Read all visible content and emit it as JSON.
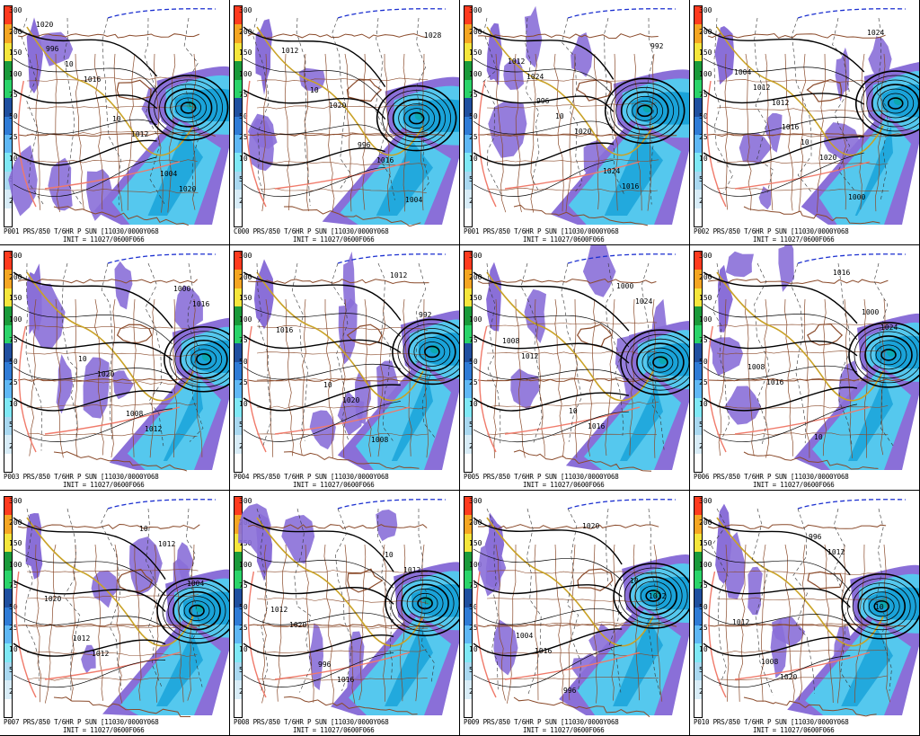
{
  "colors": {
    "precip_scale": [
      "#ff3b1f",
      "#f5a623",
      "#f5e63c",
      "#1a9a3a",
      "#2bd46a",
      "#1f4f9f",
      "#2f7bd6",
      "#5fb8f5",
      "#7fe8f5",
      "#a9d8f0",
      "#d8ecf7",
      "#ffffff"
    ],
    "purple": "#8a6fd8",
    "cyan_light": "#55c8ee",
    "cyan_mid": "#1aa3d9",
    "teal": "#0ba8b0",
    "isobar": "#000000",
    "thickness_gold": "#c9a227",
    "thickness_red": "#f07a6a",
    "thickness_blue": "#1b2fd0",
    "border_brown": "#8a4a2a"
  },
  "scale_ticks": [
    "300",
    "200",
    "150",
    "100",
    "75",
    "50",
    "25",
    "10",
    "5",
    "2"
  ],
  "panels": [
    {
      "caption1": "P001 PRS/850 T/6HR P SUN [11030/0000Y068",
      "caption2": "INIT = 11027/0600F066",
      "labels": [
        "1020",
        "1016",
        "1012",
        "1020",
        "10",
        "10",
        "1004",
        "996"
      ]
    },
    {
      "caption1": "C000 PRS/850 T/6HR P SUN [11030/0000Y068",
      "caption2": "INIT = 11027/0600F066",
      "labels": [
        "1012",
        "1020",
        "1016",
        "1028",
        "10",
        "996",
        "1004"
      ]
    },
    {
      "caption1": "P001 PRS/850 T/6HR P SUN [11030/0000Y068",
      "caption2": "INIT = 11027/0600F066",
      "labels": [
        "1024",
        "1020",
        "1016",
        "1012",
        "10",
        "1024",
        "992",
        "996"
      ]
    },
    {
      "caption1": "P002 PRS/850 T/6HR P SUN [11030/0000Y068",
      "caption2": "INIT = 11027/0600F066",
      "labels": [
        "1012",
        "1020",
        "1024",
        "1012",
        "10",
        "1000",
        "1004",
        "1016"
      ]
    },
    {
      "caption1": "P003 PRS/850 T/6HR P SUN [11030/0000Y068",
      "caption2": "INIT = 11027/0600F066",
      "labels": [
        "1020",
        "1012",
        "1016",
        "10",
        "1008",
        "1000"
      ]
    },
    {
      "caption1": "P004 PRS/850 T/6HR P SUN [11030/0000Y068",
      "caption2": "INIT = 11027/0600F066",
      "labels": [
        "1020",
        "1012",
        "1016",
        "10",
        "1008",
        "992"
      ]
    },
    {
      "caption1": "P005 PRS/850 T/6HR P SUN [11030/0000Y068",
      "caption2": "INIT = 11027/0600F066",
      "labels": [
        "1016",
        "1024",
        "1012",
        "10",
        "1000",
        "1008"
      ]
    },
    {
      "caption1": "P006 PRS/850 T/6HR P SUN [11030/0000Y068",
      "caption2": "INIT = 11027/0600F066",
      "labels": [
        "1016",
        "1024",
        "1016",
        "10",
        "1000",
        "1008"
      ]
    },
    {
      "caption1": "P007 PRS/850 T/6HR P SUN [11030/0000Y068",
      "caption2": "INIT = 11027/0600F066",
      "labels": [
        "1012",
        "1020",
        "1012",
        "10",
        "1004",
        "1012"
      ]
    },
    {
      "caption1": "P008 PRS/850 T/6HR P SUN [11030/0000Y068",
      "caption2": "INIT = 11027/0600F066",
      "labels": [
        "1012",
        "1020",
        "1016",
        "10",
        "1012",
        "996"
      ]
    },
    {
      "caption1": "P009 PRS/850 T/6HR P SUN [11030/0000Y068",
      "caption2": "INIT = 11027/0600F066",
      "labels": [
        "1012",
        "1016",
        "1020",
        "10",
        "1004",
        "996"
      ]
    },
    {
      "caption1": "P010 PRS/850 T/6HR P SUN [11030/0000Y068",
      "caption2": "INIT = 11027/0600F066",
      "labels": [
        "1012",
        "1020",
        "1012",
        "10",
        "1008",
        "996"
      ]
    }
  ]
}
